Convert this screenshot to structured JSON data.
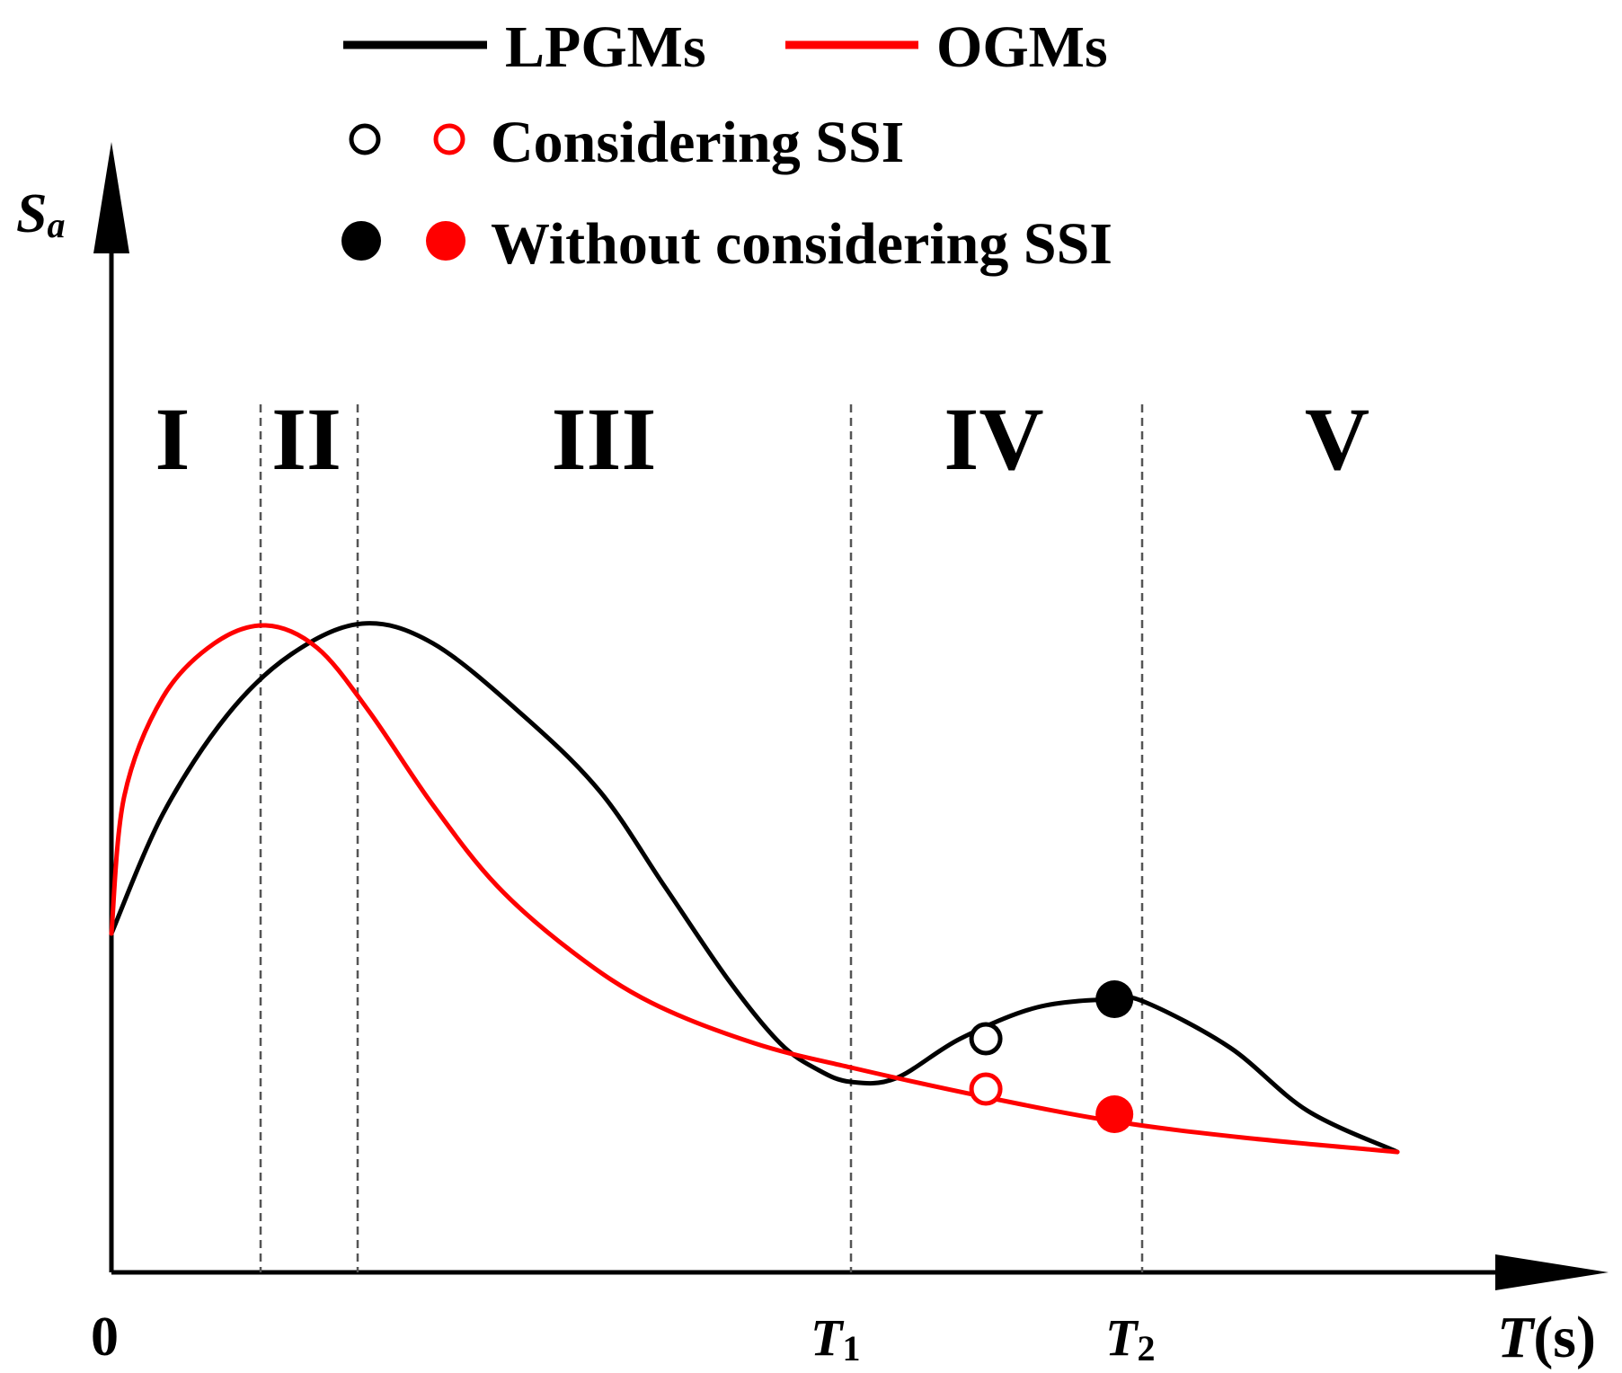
{
  "chart_data": {
    "type": "line",
    "title": "",
    "xlabel": "T(s)",
    "ylabel": "Sa",
    "axis_ticks": {
      "origin": "0",
      "T1": {
        "symbol": "T",
        "subscript": "1"
      },
      "T2": {
        "symbol": "T",
        "subscript": "2"
      }
    },
    "axis_labels": {
      "y": {
        "symbol": "S",
        "subscript": "a"
      },
      "x": {
        "symbol": "T",
        "unit": "(s)"
      }
    },
    "xlim": [
      0,
      1.0
    ],
    "ylim": [
      0,
      1.0
    ],
    "grid": false,
    "legend": {
      "placement": "top",
      "lines": [
        {
          "label": "LPGMs",
          "color": "#000000"
        },
        {
          "label": "OGMs",
          "color": "#ff0000"
        }
      ],
      "markers": [
        {
          "label": "Considering SSI",
          "style": "open"
        },
        {
          "label": "Without considering SSI",
          "style": "filled"
        }
      ]
    },
    "zones": {
      "labels": [
        "I",
        "II",
        "III",
        "IV",
        "V"
      ],
      "boundaries": [
        0.12,
        0.195,
        0.575,
        0.805
      ]
    },
    "series": [
      {
        "name": "LPGMs",
        "color": "#000000",
        "x": [
          0.0,
          0.04,
          0.09,
          0.14,
          0.195,
          0.25,
          0.32,
          0.38,
          0.43,
          0.48,
          0.52,
          0.55,
          0.575,
          0.61,
          0.66,
          0.72,
          0.78,
          0.805,
          0.87,
          0.93,
          1.0
        ],
        "y": [
          0.377,
          0.51,
          0.62,
          0.688,
          0.722,
          0.7,
          0.62,
          0.535,
          0.43,
          0.325,
          0.255,
          0.225,
          0.212,
          0.216,
          0.26,
          0.295,
          0.304,
          0.3,
          0.25,
          0.18,
          0.134
        ]
      },
      {
        "name": "OGMs",
        "color": "#ff0000",
        "x": [
          0.0,
          0.01,
          0.04,
          0.08,
          0.12,
          0.16,
          0.2,
          0.25,
          0.3,
          0.36,
          0.42,
          0.5,
          0.575,
          0.68,
          0.78,
          0.88,
          1.0
        ],
        "y": [
          0.377,
          0.53,
          0.64,
          0.7,
          0.72,
          0.695,
          0.625,
          0.52,
          0.43,
          0.355,
          0.3,
          0.255,
          0.228,
          0.195,
          0.168,
          0.15,
          0.134
        ]
      }
    ],
    "points": [
      {
        "series": "LPGMs",
        "condition": "Considering SSI",
        "x": 0.68,
        "y": 0.26,
        "style": "open",
        "color": "#000000"
      },
      {
        "series": "LPGMs",
        "condition": "Without considering SSI",
        "x": 0.78,
        "y": 0.304,
        "style": "filled",
        "color": "#000000"
      },
      {
        "series": "OGMs",
        "condition": "Considering SSI",
        "x": 0.68,
        "y": 0.204,
        "style": "open",
        "color": "#ff0000"
      },
      {
        "series": "OGMs",
        "condition": "Without considering SSI",
        "x": 0.78,
        "y": 0.176,
        "style": "filled",
        "color": "#ff0000"
      }
    ]
  }
}
